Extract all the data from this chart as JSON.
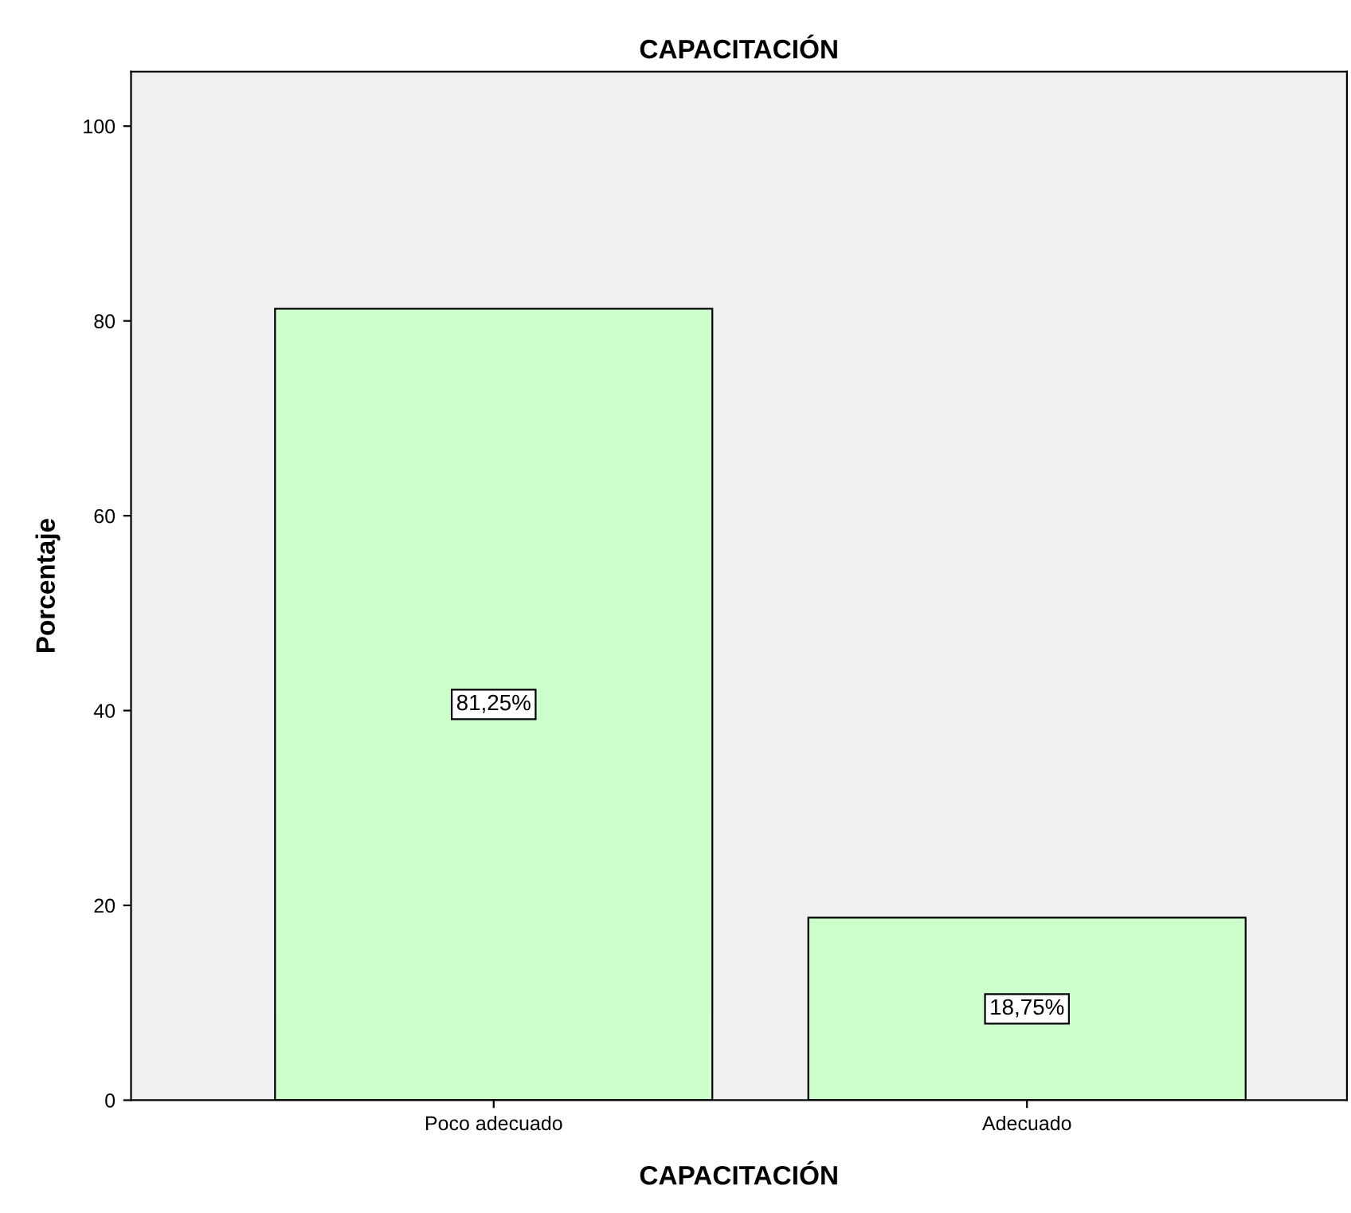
{
  "chart_data": {
    "type": "bar",
    "title": "CAPACITACIÓN",
    "xlabel": "CAPACITACIÓN",
    "ylabel": "Porcentaje",
    "categories": [
      "Poco adecuado",
      "Adecuado"
    ],
    "values": [
      81.25,
      18.75
    ],
    "value_labels": [
      "81,25%",
      "18,75%"
    ],
    "color": "#ccffcc",
    "ylim": [
      0,
      105.6
    ],
    "yticks": [
      0,
      20,
      40,
      60,
      80,
      100
    ],
    "grid": false
  }
}
